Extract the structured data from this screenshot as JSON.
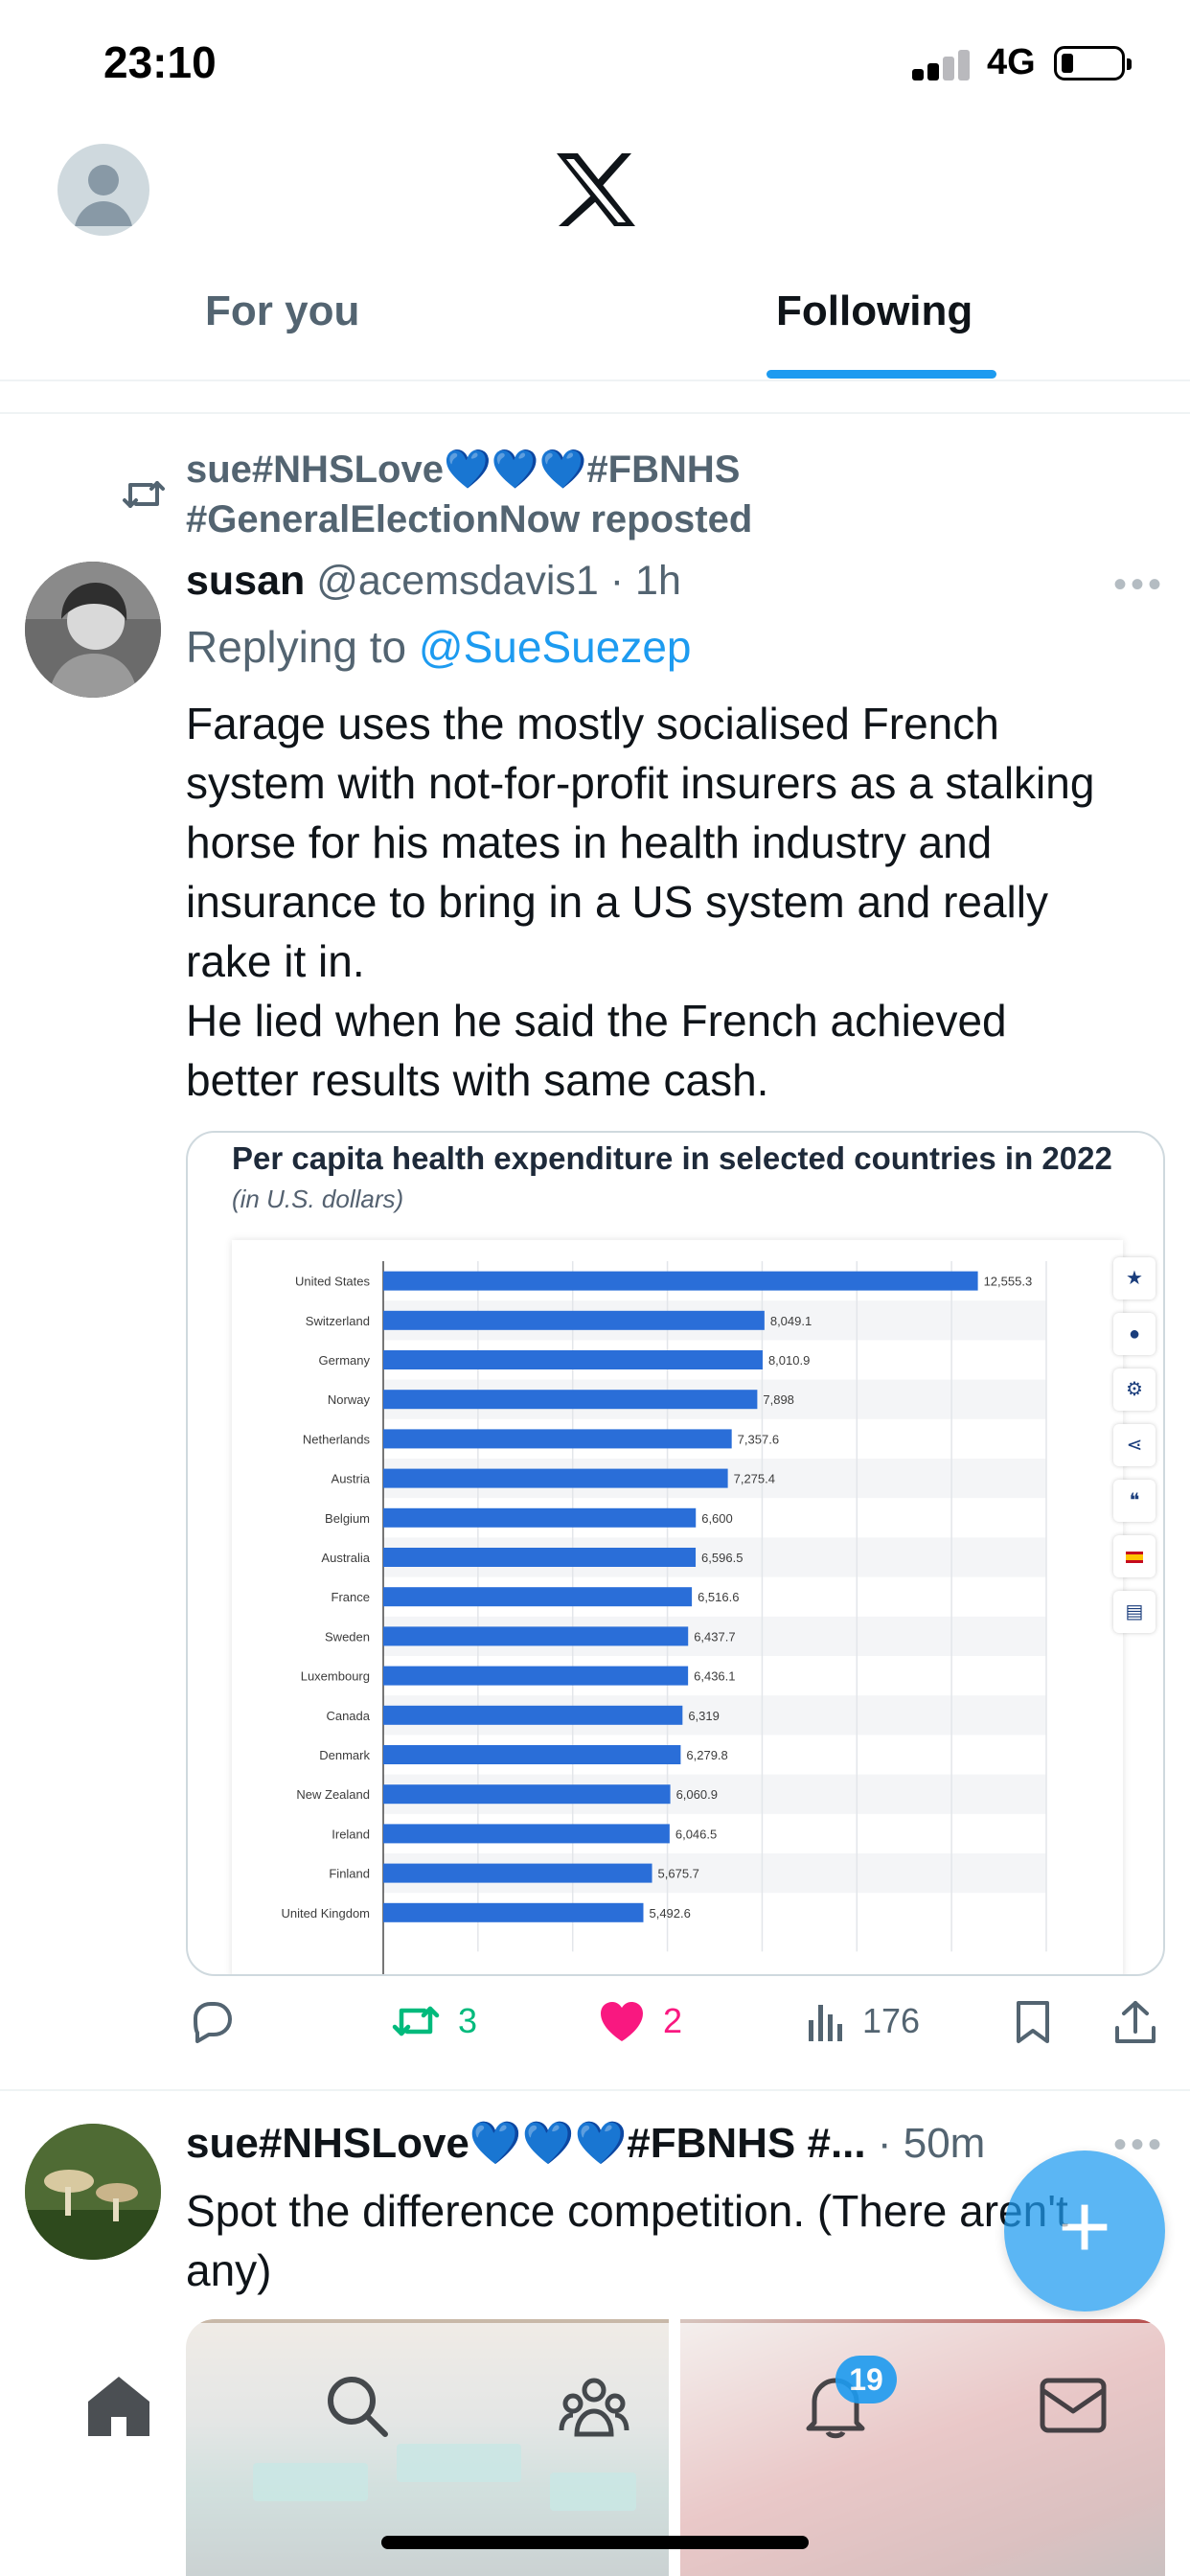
{
  "status_bar": {
    "time": "23:10",
    "network": "4G"
  },
  "header": {
    "logo": "x-logo",
    "tabs": [
      {
        "label": "For you",
        "active": false
      },
      {
        "label": "Following",
        "active": true
      }
    ]
  },
  "tweets": [
    {
      "repost_by": "sue#NHSLove💙💙💙#FBNHS #GeneralElectionNow reposted",
      "author_name": "susan",
      "handle": "@acemsdavis1",
      "time": " · 1h",
      "reply_prefix": "Replying to ",
      "reply_to": "@SueSuezep",
      "text_lines": [
        "Farage uses the mostly socialised French",
        "system with not-for-profit insurers as a stalking",
        "horse for his mates in health industry and",
        "insurance to bring in a US system and really",
        "rake it in.",
        "He lied when he said the French achieved",
        "better results with same cash."
      ],
      "actions": {
        "replies": "",
        "reposts": "3",
        "likes": "2",
        "views": "176"
      }
    },
    {
      "author_name": "sue#NHSLove💙💙💙#FBNHS #...",
      "time": " · 50m",
      "text_lines": [
        "Spot the difference competition. (There aren't",
        "any)"
      ]
    }
  ],
  "notifications_count": "19",
  "colors": {
    "accent": "#1d9bf0",
    "repost": "#00ba7c",
    "like": "#f91880",
    "bar": "#2a6ed8"
  },
  "chart_data": {
    "type": "bar",
    "orientation": "horizontal",
    "title": "Per capita health expenditure in selected countries in 2022",
    "subtitle": "(in U.S. dollars)",
    "categories": [
      "United States",
      "Switzerland",
      "Germany",
      "Norway",
      "Netherlands",
      "Austria",
      "Belgium",
      "Australia",
      "France",
      "Sweden",
      "Luxembourg",
      "Canada",
      "Denmark",
      "New Zealand",
      "Ireland",
      "Finland",
      "United Kingdom"
    ],
    "values": [
      12555.3,
      8049.1,
      8010.9,
      7898,
      7357.6,
      7275.4,
      6600,
      6596.5,
      6516.6,
      6437.7,
      6436.1,
      6319,
      6279.8,
      6060.9,
      6046.5,
      5675.7,
      5492.6
    ],
    "value_labels": [
      "12,555.3",
      "8,049.1",
      "8,010.9",
      "7,898",
      "7,357.6",
      "7,275.4",
      "6,600",
      "6,596.5",
      "6,516.6",
      "6,437.7",
      "6,436.1",
      "6,319",
      "6,279.8",
      "6,060.9",
      "6,046.5",
      "5,675.7",
      "5,492.6"
    ],
    "xlim": [
      0,
      14000
    ],
    "grid": true,
    "legend": "none"
  }
}
